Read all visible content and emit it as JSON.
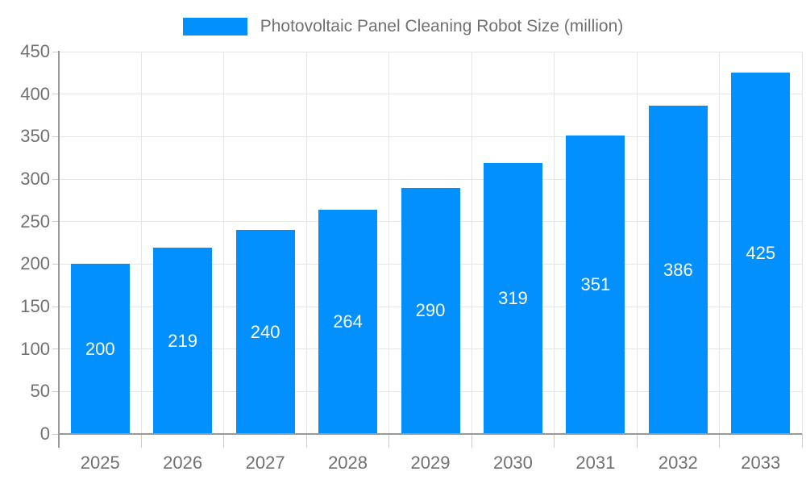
{
  "legend": {
    "label": "Photovoltaic Panel Cleaning Robot Size (million)",
    "swatch_color": "#0290FF"
  },
  "chart_data": {
    "type": "bar",
    "title": "Photovoltaic Panel Cleaning Robot Size (million)",
    "categories": [
      "2025",
      "2026",
      "2027",
      "2028",
      "2029",
      "2030",
      "2031",
      "2032",
      "2033"
    ],
    "series": [
      {
        "name": "Photovoltaic Panel Cleaning Robot Size (million)",
        "values": [
          200,
          219,
          240,
          264,
          290,
          319,
          351,
          386,
          425
        ]
      }
    ],
    "xlabel": "",
    "ylabel": "",
    "ylim": [
      0,
      450
    ],
    "yticks": [
      0,
      50,
      100,
      150,
      200,
      250,
      300,
      350,
      400,
      450
    ],
    "grid": true,
    "legend_position": "top",
    "colors": {
      "bar": "#0290FF",
      "value_label": "#FFFFFF",
      "grid": "#E6E6E6",
      "axis": "#999999",
      "tick": "#CCCCCC",
      "text": "#717171"
    }
  }
}
